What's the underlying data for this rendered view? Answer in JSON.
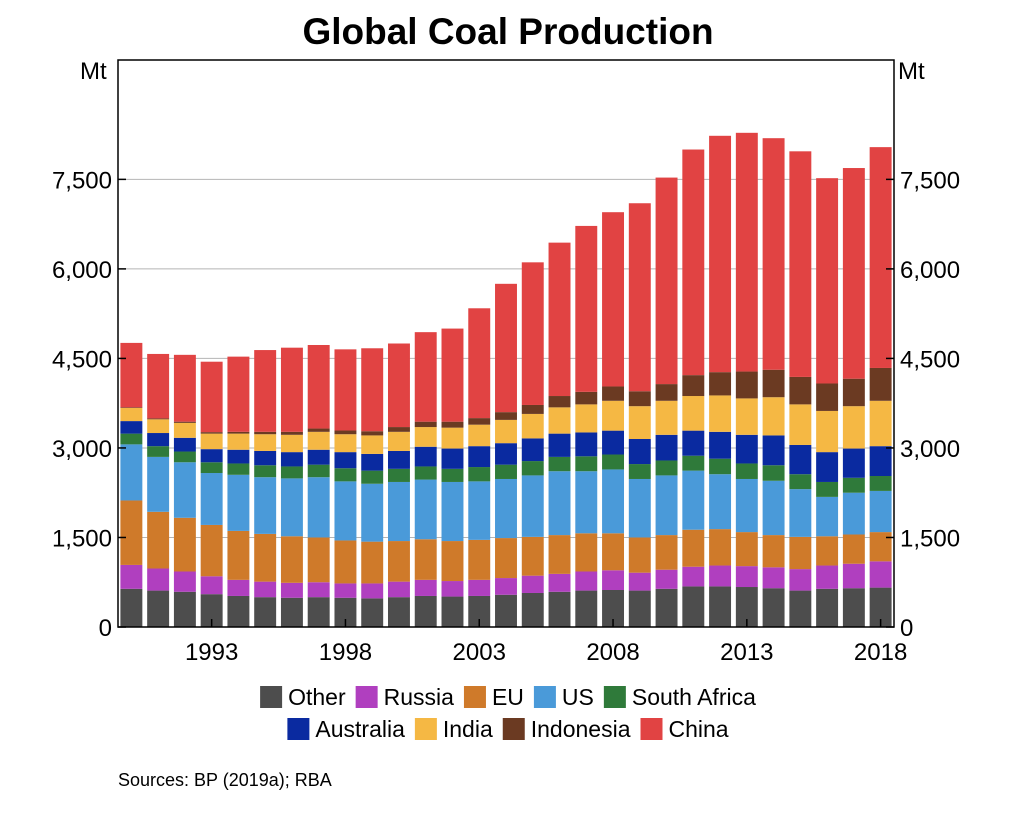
{
  "chart_data": {
    "type": "bar",
    "stacked": true,
    "title": "Global Coal Production",
    "ylabel_left": "Mt",
    "ylabel_right": "Mt",
    "ylim": [
      0,
      9500
    ],
    "yticks": [
      0,
      1500,
      3000,
      4500,
      6000,
      7500
    ],
    "ytick_labels": [
      "0",
      "1,500",
      "3,000",
      "4,500",
      "6,000",
      "7,500"
    ],
    "x": [
      1990,
      1991,
      1992,
      1993,
      1994,
      1995,
      1996,
      1997,
      1998,
      1999,
      2000,
      2001,
      2002,
      2003,
      2004,
      2005,
      2006,
      2007,
      2008,
      2009,
      2010,
      2011,
      2012,
      2013,
      2014,
      2015,
      2016,
      2017,
      2018
    ],
    "xtick_labels": [
      "1993",
      "1998",
      "2003",
      "2008",
      "2013",
      "2018"
    ],
    "xtick_years": [
      1993,
      1998,
      2003,
      2008,
      2013,
      2018
    ],
    "grid": true,
    "legend_position": "bottom",
    "source": "Sources: BP (2019a); RBA",
    "series": [
      {
        "name": "Other",
        "color": "#4d4d4d",
        "values": [
          640,
          610,
          590,
          550,
          520,
          500,
          490,
          500,
          490,
          480,
          500,
          520,
          510,
          520,
          540,
          570,
          590,
          610,
          620,
          610,
          640,
          680,
          680,
          670,
          650,
          610,
          640,
          650,
          660
        ]
      },
      {
        "name": "Russia",
        "color": "#b03fbf",
        "values": [
          400,
          370,
          340,
          300,
          270,
          260,
          250,
          250,
          240,
          250,
          260,
          270,
          260,
          270,
          280,
          290,
          300,
          320,
          330,
          300,
          320,
          330,
          350,
          350,
          350,
          360,
          390,
          410,
          440
        ]
      },
      {
        "name": "EU",
        "color": "#cf7a2a",
        "values": [
          1080,
          950,
          900,
          860,
          820,
          800,
          780,
          750,
          720,
          700,
          680,
          680,
          670,
          670,
          670,
          650,
          650,
          640,
          620,
          590,
          580,
          620,
          610,
          570,
          540,
          540,
          490,
          490,
          490
        ]
      },
      {
        "name": "US",
        "color": "#4a9ad9",
        "values": [
          940,
          920,
          930,
          870,
          940,
          950,
          970,
          1010,
          990,
          970,
          990,
          1000,
          990,
          980,
          990,
          1030,
          1070,
          1040,
          1070,
          980,
          1000,
          990,
          920,
          890,
          910,
          800,
          660,
          700,
          690
        ]
      },
      {
        "name": "South Africa",
        "color": "#2f7a3a",
        "values": [
          180,
          180,
          180,
          180,
          190,
          200,
          200,
          210,
          220,
          220,
          220,
          220,
          220,
          240,
          240,
          240,
          240,
          250,
          250,
          250,
          250,
          250,
          260,
          260,
          260,
          250,
          250,
          250,
          250
        ]
      },
      {
        "name": "Australia",
        "color": "#0a2aa0",
        "values": [
          210,
          220,
          230,
          220,
          230,
          240,
          240,
          250,
          270,
          280,
          300,
          330,
          340,
          350,
          360,
          380,
          390,
          400,
          400,
          420,
          430,
          420,
          450,
          480,
          500,
          490,
          500,
          490,
          500
        ]
      },
      {
        "name": "India",
        "color": "#f5b844",
        "values": [
          220,
          230,
          250,
          260,
          270,
          280,
          290,
          300,
          300,
          310,
          320,
          330,
          350,
          360,
          390,
          410,
          440,
          470,
          500,
          550,
          570,
          580,
          610,
          610,
          640,
          680,
          690,
          710,
          760
        ]
      },
      {
        "name": "Indonesia",
        "color": "#6b3a22",
        "values": [
          10,
          15,
          20,
          25,
          30,
          40,
          50,
          55,
          62,
          70,
          80,
          90,
          100,
          110,
          130,
          150,
          190,
          210,
          240,
          250,
          280,
          350,
          390,
          450,
          460,
          460,
          460,
          460,
          550
        ]
      },
      {
        "name": "China",
        "color": "#e14343",
        "values": [
          1080,
          1080,
          1120,
          1180,
          1260,
          1370,
          1410,
          1400,
          1360,
          1390,
          1400,
          1500,
          1560,
          1840,
          2150,
          2390,
          2570,
          2780,
          2920,
          3150,
          3460,
          3780,
          3960,
          4000,
          3880,
          3780,
          3440,
          3530,
          3700
        ]
      }
    ]
  }
}
